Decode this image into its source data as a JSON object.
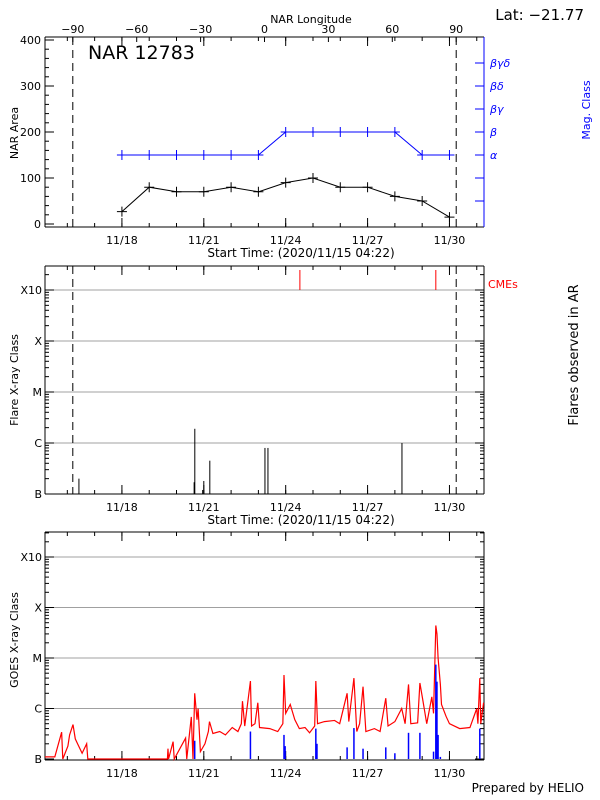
{
  "colors": {
    "axes": "#000000",
    "mag_class": "#0000ff",
    "cme": "#ff0000",
    "goes_long": "#ff0000",
    "goes_short": "#0000ff",
    "grid": "#a0a0a0"
  },
  "chart_data": [
    {
      "type": "line",
      "title": "NAR 12783",
      "top_axis_label": "NAR Longitude",
      "top_axis_ticks": [
        -90,
        -60,
        -30,
        0,
        30,
        60,
        90
      ],
      "latitude_label": "Lat: −21.77",
      "limb_longitudes": [
        -90,
        90
      ],
      "xlabel": "Start Time: (2020/11/15 04:22)",
      "xlim": [
        "2020-11-15 04:22",
        "2020-12-01 06:22"
      ],
      "xticks": [
        {
          "date": "2020-11-18 00:00",
          "label": "11/18"
        },
        {
          "date": "2020-11-21 00:00",
          "label": "11/21"
        },
        {
          "date": "2020-11-24 00:00",
          "label": "11/24"
        },
        {
          "date": "2020-11-27 00:00",
          "label": "11/27"
        },
        {
          "date": "2020-11-30 00:00",
          "label": "11/30"
        }
      ],
      "ylabel": "NAR Area",
      "ylim": [
        0,
        400
      ],
      "yticks": [
        0,
        100,
        200,
        300,
        400
      ],
      "y2label": "Mag. Class",
      "y2_ticks": [
        {
          "area_level": 50,
          "label": ""
        },
        {
          "area_level": 100,
          "label": ""
        },
        {
          "area_level": 150,
          "label": "α"
        },
        {
          "area_level": 200,
          "label": "β"
        },
        {
          "area_level": 250,
          "label": "βγ"
        },
        {
          "area_level": 300,
          "label": "βδ"
        },
        {
          "area_level": 350,
          "label": "βγδ"
        }
      ],
      "series": [
        {
          "name": "NAR Area",
          "dates": [
            "2020-11-18 00:00",
            "2020-11-19 00:00",
            "2020-11-20 00:00",
            "2020-11-21 00:00",
            "2020-11-22 00:00",
            "2020-11-23 00:00",
            "2020-11-24 00:00",
            "2020-11-25 00:00",
            "2020-11-26 00:00",
            "2020-11-27 00:00",
            "2020-11-28 00:00",
            "2020-11-29 00:00",
            "2020-11-30 00:00"
          ],
          "values": [
            27,
            80,
            70,
            70,
            80,
            70,
            90,
            100,
            80,
            80,
            60,
            50,
            15
          ]
        },
        {
          "name": "Mag. Class",
          "dates": [
            "2020-11-18 00:00",
            "2020-11-19 00:00",
            "2020-11-20 00:00",
            "2020-11-21 00:00",
            "2020-11-22 00:00",
            "2020-11-23 00:00",
            "2020-11-24 00:00",
            "2020-11-25 00:00",
            "2020-11-26 00:00",
            "2020-11-27 00:00",
            "2020-11-28 00:00",
            "2020-11-29 00:00",
            "2020-11-30 00:00"
          ],
          "values": [
            "α",
            "α",
            "α",
            "α",
            "α",
            "α",
            "β",
            "β",
            "β",
            "β",
            "β",
            "α",
            "α"
          ]
        }
      ]
    },
    {
      "type": "bar",
      "xlabel": "Start Time: (2020/11/15 04:22)",
      "xlim": [
        "2020-11-15 04:22",
        "2020-12-01 06:22"
      ],
      "ylabel": "Flare X-ray Class",
      "y2label": "Flares observed in AR",
      "yscale": "log",
      "yticks": [
        "B",
        "C",
        "M",
        "X",
        "X10"
      ],
      "grid": true,
      "flares": [
        {
          "date": "2020-11-16 10:12",
          "class": "B2.0"
        },
        {
          "date": "2020-11-20 15:30",
          "class": "B1.7"
        },
        {
          "date": "2020-11-20 16:05",
          "class": "C1.9"
        },
        {
          "date": "2020-11-20 23:00",
          "class": "B1.2"
        },
        {
          "date": "2020-11-21 00:00",
          "class": "B1.8"
        },
        {
          "date": "2020-11-21 05:17",
          "class": "B4.5"
        },
        {
          "date": "2020-11-23 05:46",
          "class": "B8.0"
        },
        {
          "date": "2020-11-23 08:24",
          "class": "B8.0"
        },
        {
          "date": "2020-11-28 06:14",
          "class": "C1.0"
        }
      ],
      "cme_label": "CMEs",
      "cmes": [
        "2020-11-24 12:29",
        "2020-11-29 12:00"
      ]
    },
    {
      "type": "line",
      "ylabel": "GOES X-ray Class",
      "yscale": "log",
      "yticks": [
        "B",
        "C",
        "M",
        "X",
        "X10"
      ],
      "grid": true,
      "xlim": [
        "2020-11-15 04:22",
        "2020-12-01 06:22"
      ],
      "footer": "Prepared by HELIO",
      "series": [
        {
          "color": "#ff0000",
          "points": [
            [
              "2020-11-15 04:22",
              "B1.1"
            ],
            [
              "2020-11-15 13:00",
              "B1.1"
            ],
            [
              "2020-11-15 19:00",
              "B3.4"
            ],
            [
              "2020-11-15 20:00",
              "B1.0"
            ],
            [
              "2020-11-16 00:30",
              "B1.8"
            ],
            [
              "2020-11-16 02:00",
              "B3.0"
            ],
            [
              "2020-11-16 05:00",
              "B4.8"
            ],
            [
              "2020-11-16 07:00",
              "B2.5"
            ],
            [
              "2020-11-16 09:00",
              "B2.0"
            ],
            [
              "2020-11-16 13:00",
              "B1.3"
            ],
            [
              "2020-11-16 17:00",
              "B2.0"
            ],
            [
              "2020-11-16 18:00",
              "B1.0"
            ],
            [
              "2020-11-17 00:00",
              "B0.9"
            ],
            [
              "2020-11-19 16:00",
              "B0.9"
            ],
            [
              "2020-11-19 16:30",
              "B1.6"
            ],
            [
              "2020-11-19 17:00",
              "B0.9"
            ],
            [
              "2020-11-19 21:00",
              "B2.2"
            ],
            [
              "2020-11-19 22:00",
              "B0.9"
            ],
            [
              "2020-11-20 08:00",
              "B2.6"
            ],
            [
              "2020-11-20 09:00",
              "B1.0"
            ],
            [
              "2020-11-20 13:00",
              "B6.8"
            ],
            [
              "2020-11-20 14:30",
              "B1.0"
            ],
            [
              "2020-11-20 16:00",
              "C2.0"
            ],
            [
              "2020-11-20 18:00",
              "B6.0"
            ],
            [
              "2020-11-20 19:00",
              "C1.0"
            ],
            [
              "2020-11-20 21:00",
              "B1.4"
            ],
            [
              "2020-11-21 01:00",
              "B2.0"
            ],
            [
              "2020-11-21 04:00",
              "B3.5"
            ],
            [
              "2020-11-21 05:00",
              "B5.5"
            ],
            [
              "2020-11-21 08:00",
              "B3.2"
            ],
            [
              "2020-11-21 14:00",
              "B3.5"
            ],
            [
              "2020-11-21 19:00",
              "B3.0"
            ],
            [
              "2020-11-22 01:00",
              "B4.2"
            ],
            [
              "2020-11-22 06:00",
              "B3.5"
            ],
            [
              "2020-11-22 09:00",
              "B5.0"
            ],
            [
              "2020-11-22 10:00",
              "C1.4"
            ],
            [
              "2020-11-22 12:00",
              "B4.5"
            ],
            [
              "2020-11-22 17:00",
              "C3.5"
            ],
            [
              "2020-11-22 18:00",
              "B4.5"
            ],
            [
              "2020-11-22 21:00",
              "B5.0"
            ],
            [
              "2020-11-22 23:30",
              "C1.3"
            ],
            [
              "2020-11-23 01:00",
              "B4.2"
            ],
            [
              "2020-11-23 10:00",
              "B4.0"
            ],
            [
              "2020-11-23 17:00",
              "B3.5"
            ],
            [
              "2020-11-23 21:30",
              "B5.0"
            ],
            [
              "2020-11-23 22:30",
              "C4.6"
            ],
            [
              "2020-11-24 00:00",
              "B8.0"
            ],
            [
              "2020-11-24 04:00",
              "C1.2"
            ],
            [
              "2020-11-24 08:00",
              "B6.0"
            ],
            [
              "2020-11-24 12:00",
              "B4.0"
            ],
            [
              "2020-11-24 17:00",
              "B4.2"
            ],
            [
              "2020-11-24 21:00",
              "B3.3"
            ],
            [
              "2020-11-25 01:30",
              "B4.5"
            ],
            [
              "2020-11-25 02:30",
              "C3.5"
            ],
            [
              "2020-11-25 04:00",
              "B5.0"
            ],
            [
              "2020-11-25 10:00",
              "B5.5"
            ],
            [
              "2020-11-25 19:00",
              "B5.8"
            ],
            [
              "2020-11-25 23:30",
              "B5.0"
            ],
            [
              "2020-11-26 06:00",
              "C2.0"
            ],
            [
              "2020-11-26 07:30",
              "B5.5"
            ],
            [
              "2020-11-26 12:00",
              "C4.0"
            ],
            [
              "2020-11-26 14:30",
              "B3.5"
            ],
            [
              "2020-11-26 17:00",
              "B5.0"
            ],
            [
              "2020-11-26 20:00",
              "C2.7"
            ],
            [
              "2020-11-26 22:30",
              "B3.5"
            ],
            [
              "2020-11-27 06:00",
              "B4.0"
            ],
            [
              "2020-11-27 11:00",
              "B3.5"
            ],
            [
              "2020-11-27 16:00",
              "C1.6"
            ],
            [
              "2020-11-27 18:00",
              "B4.5"
            ],
            [
              "2020-11-28 00:00",
              "B5.5"
            ],
            [
              "2020-11-28 06:00",
              "C1.0"
            ],
            [
              "2020-11-28 09:00",
              "B5.0"
            ],
            [
              "2020-11-28 12:00",
              "C3.0"
            ],
            [
              "2020-11-28 14:00",
              "B5.0"
            ],
            [
              "2020-11-28 20:00",
              "B5.2"
            ],
            [
              "2020-11-28 22:00",
              "C3.2"
            ],
            [
              "2020-11-29 00:30",
              "C1.5"
            ],
            [
              "2020-11-29 04:00",
              "B5.0"
            ],
            [
              "2020-11-29 08:30",
              "C1.7"
            ],
            [
              "2020-11-29 10:00",
              "B8.0"
            ],
            [
              "2020-11-29 12:00",
              "M4.4"
            ],
            [
              "2020-11-29 13:00",
              "M3.0"
            ],
            [
              "2020-11-29 14:00",
              "M1.0"
            ],
            [
              "2020-11-29 16:00",
              "C3.0"
            ],
            [
              "2020-11-29 17:00",
              "C1.2"
            ],
            [
              "2020-11-29 21:00",
              "B7.0"
            ],
            [
              "2020-11-30 00:00",
              "B5.0"
            ],
            [
              "2020-11-30 09:00",
              "B4.0"
            ],
            [
              "2020-11-30 18:00",
              "B4.2"
            ],
            [
              "2020-12-01 00:00",
              "C1.0"
            ],
            [
              "2020-12-01 01:00",
              "B5.0"
            ],
            [
              "2020-12-01 02:40",
              "C4.0"
            ],
            [
              "2020-12-01 03:30",
              "B5.0"
            ],
            [
              "2020-12-01 06:00",
              "C1.3"
            ]
          ]
        },
        {
          "color": "#0000ff",
          "spikes": [
            [
              "2020-11-20 16:00",
              "B2.3"
            ],
            [
              "2020-11-22 17:00",
              "B3.5"
            ],
            [
              "2020-11-23 22:30",
              "B3.0"
            ],
            [
              "2020-11-23 23:30",
              "B1.8"
            ],
            [
              "2020-11-25 02:30",
              "B4.0"
            ],
            [
              "2020-11-25 03:30",
              "B2.0"
            ],
            [
              "2020-11-26 06:00",
              "B1.7"
            ],
            [
              "2020-11-26 12:00",
              "B4.1"
            ],
            [
              "2020-11-26 20:00",
              "B1.6"
            ],
            [
              "2020-11-27 16:00",
              "B1.7"
            ],
            [
              "2020-11-28 00:00",
              "B1.3"
            ],
            [
              "2020-11-28 12:00",
              "B3.3"
            ],
            [
              "2020-11-28 22:00",
              "B3.3"
            ],
            [
              "2020-11-29 10:00",
              "B1.4"
            ],
            [
              "2020-11-29 12:00",
              "C7.4"
            ],
            [
              "2020-11-29 13:00",
              "C3.4"
            ],
            [
              "2020-11-29 14:00",
              "B3.0"
            ],
            [
              "2020-11-29 16:00",
              "B1.1"
            ],
            [
              "2020-12-01 02:40",
              "B4.0"
            ]
          ]
        }
      ]
    }
  ]
}
